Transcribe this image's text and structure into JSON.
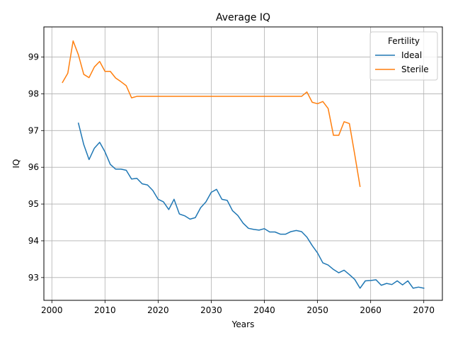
{
  "chart_data": {
    "type": "line",
    "title": "Average IQ",
    "xlabel": "Years",
    "ylabel": "IQ",
    "xlim": [
      1998.5,
      2073.5
    ],
    "ylim": [
      92.38,
      99.82
    ],
    "xticks": [
      2000,
      2010,
      2020,
      2030,
      2040,
      2050,
      2060,
      2070
    ],
    "yticks": [
      93,
      94,
      95,
      96,
      97,
      98,
      99
    ],
    "grid": true,
    "legend": {
      "title": "Fertility",
      "placement": "top-right"
    },
    "series": [
      {
        "name": "Ideal",
        "color": "#1f77b4",
        "x": [
          2005,
          2006,
          2007,
          2008,
          2009,
          2010,
          2011,
          2012,
          2013,
          2014,
          2015,
          2016,
          2017,
          2018,
          2019,
          2020,
          2021,
          2022,
          2023,
          2024,
          2025,
          2026,
          2027,
          2028,
          2029,
          2030,
          2031,
          2032,
          2033,
          2034,
          2035,
          2036,
          2037,
          2038,
          2039,
          2040,
          2041,
          2042,
          2043,
          2044,
          2045,
          2046,
          2047,
          2048,
          2049,
          2050,
          2051,
          2052,
          2053,
          2054,
          2055,
          2056,
          2057,
          2058,
          2059,
          2060,
          2061,
          2062,
          2063,
          2064,
          2065,
          2066,
          2067,
          2068,
          2069,
          2070
        ],
        "y": [
          97.2,
          96.62,
          96.21,
          96.52,
          96.68,
          96.42,
          96.08,
          95.95,
          95.95,
          95.92,
          95.68,
          95.7,
          95.55,
          95.52,
          95.37,
          95.13,
          95.06,
          94.85,
          95.13,
          94.73,
          94.68,
          94.59,
          94.63,
          94.9,
          95.06,
          95.32,
          95.4,
          95.13,
          95.1,
          94.82,
          94.69,
          94.48,
          94.34,
          94.31,
          94.29,
          94.33,
          94.24,
          94.24,
          94.18,
          94.18,
          94.25,
          94.28,
          94.25,
          94.1,
          93.87,
          93.67,
          93.4,
          93.34,
          93.22,
          93.13,
          93.2,
          93.08,
          92.95,
          92.71,
          92.91,
          92.92,
          92.94,
          92.79,
          92.84,
          92.81,
          92.91,
          92.8,
          92.91,
          92.71,
          92.74,
          92.71
        ]
      },
      {
        "name": "Sterile",
        "color": "#ff7f0e",
        "x": [
          2002,
          2003,
          2004,
          2005,
          2006,
          2007,
          2008,
          2009,
          2010,
          2011,
          2012,
          2013,
          2014,
          2015,
          2016,
          2017,
          2018,
          2019,
          2020,
          2021,
          2022,
          2023,
          2024,
          2025,
          2026,
          2027,
          2028,
          2029,
          2030,
          2031,
          2032,
          2033,
          2034,
          2035,
          2036,
          2037,
          2038,
          2039,
          2040,
          2041,
          2042,
          2043,
          2044,
          2045,
          2046,
          2047,
          2048,
          2049,
          2050,
          2051,
          2052,
          2053,
          2054,
          2055,
          2056,
          2057,
          2058
        ],
        "y": [
          98.31,
          98.56,
          99.44,
          99.06,
          98.53,
          98.44,
          98.73,
          98.88,
          98.61,
          98.61,
          98.43,
          98.33,
          98.22,
          97.89,
          97.93,
          97.93,
          97.93,
          97.93,
          97.93,
          97.93,
          97.93,
          97.93,
          97.93,
          97.93,
          97.93,
          97.93,
          97.93,
          97.93,
          97.93,
          97.93,
          97.93,
          97.93,
          97.93,
          97.93,
          97.93,
          97.93,
          97.93,
          97.93,
          97.93,
          97.93,
          97.93,
          97.93,
          97.93,
          97.93,
          97.93,
          97.93,
          98.05,
          97.77,
          97.73,
          97.79,
          97.6,
          96.87,
          96.87,
          97.24,
          97.19,
          96.35,
          95.48
        ]
      }
    ]
  }
}
